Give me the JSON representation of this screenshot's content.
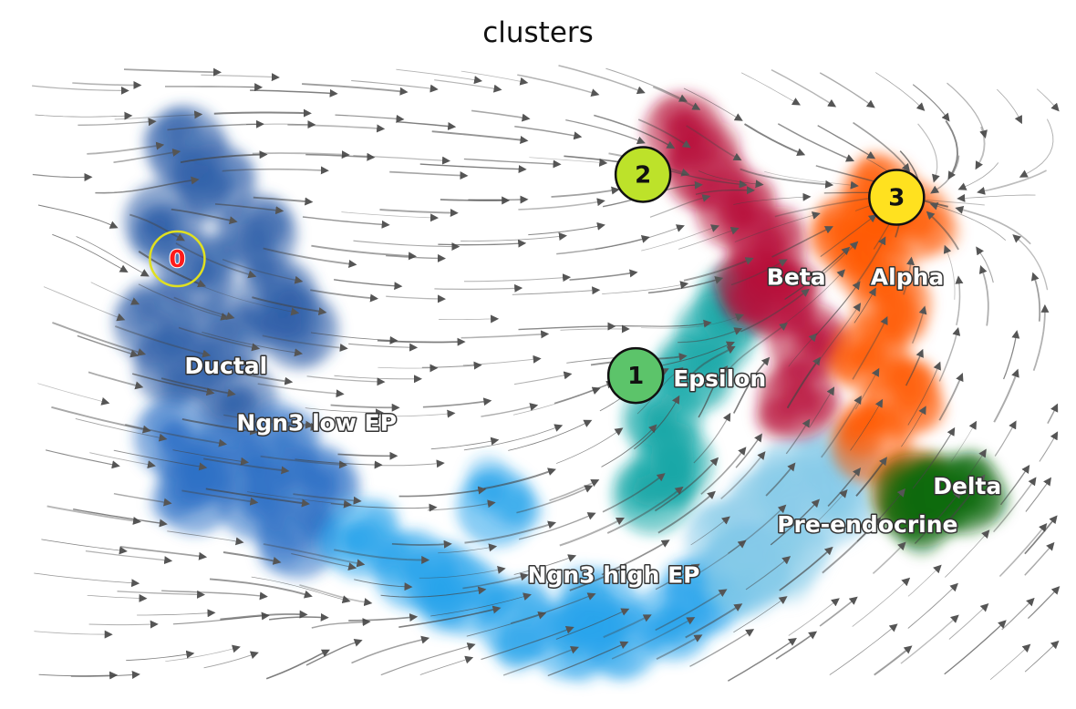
{
  "chart_data": {
    "type": "scatter",
    "title": "clusters",
    "xlabel": "",
    "ylabel": "",
    "grid": false,
    "axes_visible": false,
    "xlim": [
      0,
      1
    ],
    "ylim": [
      0,
      1
    ],
    "overlay": "velocity stream lines with arrows",
    "clusters": [
      {
        "name": "Ductal",
        "color": "#2f5fa8",
        "label_pos": [
          0.16,
          0.5
        ],
        "centers": [
          [
            0.16,
            0.86
          ],
          [
            0.19,
            0.8
          ],
          [
            0.14,
            0.74
          ],
          [
            0.23,
            0.72
          ],
          [
            0.17,
            0.66
          ],
          [
            0.25,
            0.62
          ],
          [
            0.13,
            0.58
          ],
          [
            0.2,
            0.56
          ],
          [
            0.27,
            0.57
          ],
          [
            0.15,
            0.51
          ],
          [
            0.21,
            0.46
          ]
        ]
      },
      {
        "name": "Ngn3 low EP",
        "color": "#2b6fc5",
        "label_pos": [
          0.21,
          0.41
        ],
        "centers": [
          [
            0.15,
            0.4
          ],
          [
            0.2,
            0.36
          ],
          [
            0.25,
            0.38
          ],
          [
            0.17,
            0.31
          ],
          [
            0.23,
            0.3
          ],
          [
            0.29,
            0.32
          ],
          [
            0.27,
            0.24
          ]
        ]
      },
      {
        "name": "Ngn3 high EP",
        "color": "#28a4ec",
        "label_pos": [
          0.49,
          0.17
        ],
        "centers": [
          [
            0.33,
            0.24
          ],
          [
            0.38,
            0.19
          ],
          [
            0.43,
            0.15
          ],
          [
            0.48,
            0.11
          ],
          [
            0.53,
            0.08
          ],
          [
            0.58,
            0.08
          ],
          [
            0.63,
            0.11
          ],
          [
            0.66,
            0.15
          ],
          [
            0.7,
            0.2
          ],
          [
            0.46,
            0.29
          ],
          [
            0.41,
            0.17
          ],
          [
            0.56,
            0.13
          ]
        ]
      },
      {
        "name": "Pre-endocrine",
        "color": "#88cbe9",
        "label_pos": [
          0.73,
          0.25
        ],
        "centers": [
          [
            0.68,
            0.24
          ],
          [
            0.72,
            0.29
          ],
          [
            0.75,
            0.34
          ],
          [
            0.78,
            0.29
          ],
          [
            0.74,
            0.22
          ],
          [
            0.7,
            0.18
          ],
          [
            0.79,
            0.36
          ]
        ]
      },
      {
        "name": "Epsilon",
        "color": "#14a7a7",
        "label_pos": [
          0.63,
          0.48
        ],
        "centers": [
          [
            0.62,
            0.43
          ],
          [
            0.63,
            0.36
          ],
          [
            0.65,
            0.5
          ],
          [
            0.67,
            0.56
          ],
          [
            0.69,
            0.61
          ],
          [
            0.61,
            0.31
          ]
        ]
      },
      {
        "name": "Beta",
        "color": "#b8103a",
        "label_pos": [
          0.72,
          0.64
        ],
        "centers": [
          [
            0.64,
            0.88
          ],
          [
            0.66,
            0.82
          ],
          [
            0.69,
            0.76
          ],
          [
            0.72,
            0.7
          ],
          [
            0.73,
            0.62
          ],
          [
            0.76,
            0.55
          ],
          [
            0.75,
            0.46
          ],
          [
            0.71,
            0.64
          ]
        ]
      },
      {
        "name": "Alpha",
        "color": "#ff5a00",
        "label_pos": [
          0.82,
          0.64
        ],
        "centers": [
          [
            0.83,
            0.78
          ],
          [
            0.86,
            0.74
          ],
          [
            0.82,
            0.68
          ],
          [
            0.84,
            0.61
          ],
          [
            0.82,
            0.53
          ],
          [
            0.85,
            0.46
          ],
          [
            0.82,
            0.39
          ],
          [
            0.86,
            0.32
          ],
          [
            0.8,
            0.72
          ]
        ]
      },
      {
        "name": "Delta",
        "color": "#0d6b12",
        "label_pos": [
          0.88,
          0.31
        ],
        "centers": [
          [
            0.86,
            0.31
          ],
          [
            0.89,
            0.31
          ],
          [
            0.91,
            0.31
          ],
          [
            0.87,
            0.29
          ]
        ]
      }
    ],
    "markers": [
      {
        "label": "0",
        "x": 0.153,
        "y": 0.681,
        "style": "ring",
        "text_color": "#ff1a1a",
        "ring_color": "#e0e020"
      },
      {
        "label": "1",
        "x": 0.594,
        "y": 0.497,
        "style": "filled",
        "fill": "#5cc46a",
        "text_color": "#111111"
      },
      {
        "label": "2",
        "x": 0.601,
        "y": 0.814,
        "style": "filled",
        "fill": "#bde22a",
        "text_color": "#111111"
      },
      {
        "label": "3",
        "x": 0.845,
        "y": 0.778,
        "style": "filled",
        "fill": "#ffe11f",
        "text_color": "#111111"
      }
    ]
  }
}
